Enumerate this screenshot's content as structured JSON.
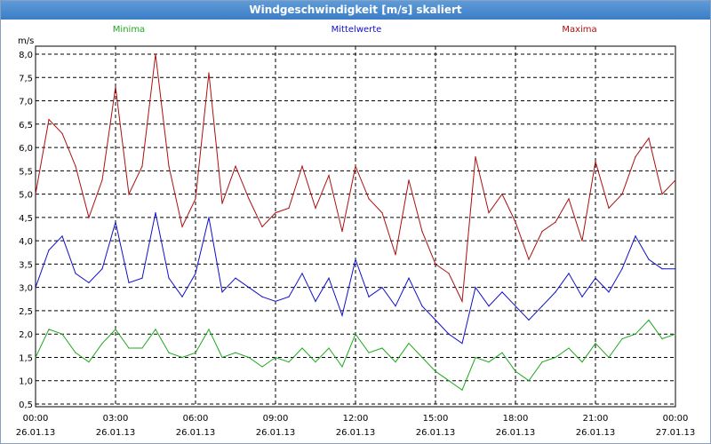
{
  "window": {
    "title": "Windgeschwindigkeit [m/s] skaliert"
  },
  "colors": {
    "minima": "#1fa81f",
    "mittelwerte": "#1010c8",
    "maxima": "#aa1010",
    "grid": "#000000"
  },
  "chart_data": {
    "type": "line",
    "title": "Windgeschwindigkeit [m/s] skaliert",
    "ylabel": "m/s",
    "xlabel": "",
    "ylim": [
      0.5,
      8.0
    ],
    "yticks": [
      "8,0",
      "7,5",
      "7,0",
      "6,5",
      "6,0",
      "5,5",
      "5,0",
      "4,5",
      "4,0",
      "3,5",
      "3,0",
      "2,5",
      "2,0",
      "1,5",
      "1,0",
      "0,5"
    ],
    "xticks": [
      {
        "time": "00:00",
        "date": "26.01.13"
      },
      {
        "time": "03:00",
        "date": "26.01.13"
      },
      {
        "time": "06:00",
        "date": "26.01.13"
      },
      {
        "time": "09:00",
        "date": "26.01.13"
      },
      {
        "time": "12:00",
        "date": "26.01.13"
      },
      {
        "time": "15:00",
        "date": "26.01.13"
      },
      {
        "time": "18:00",
        "date": "26.01.13"
      },
      {
        "time": "21:00",
        "date": "26.01.13"
      },
      {
        "time": "00:00",
        "date": "27.01.13"
      }
    ],
    "grid": true,
    "x_hours": [
      0,
      0.5,
      1,
      1.5,
      2,
      2.5,
      3,
      3.5,
      4,
      4.5,
      5,
      5.5,
      6,
      6.5,
      7,
      7.5,
      8,
      8.5,
      9,
      9.5,
      10,
      10.5,
      11,
      11.5,
      12,
      12.5,
      13,
      13.5,
      14,
      14.5,
      15,
      15.5,
      16,
      16.5,
      17,
      17.5,
      18,
      18.5,
      19,
      19.5,
      20,
      20.5,
      21,
      21.5,
      22,
      22.5,
      23,
      23.5,
      24
    ],
    "series": [
      {
        "name": "Maxima",
        "values": [
          5.0,
          6.6,
          6.3,
          5.6,
          4.5,
          5.3,
          7.3,
          5.0,
          5.6,
          8.0,
          5.6,
          4.3,
          4.9,
          7.6,
          4.8,
          5.6,
          4.9,
          4.3,
          4.6,
          4.7,
          5.6,
          4.7,
          5.4,
          4.2,
          5.6,
          4.9,
          4.6,
          3.7,
          5.3,
          4.2,
          3.5,
          3.3,
          2.7,
          5.8,
          4.6,
          5.0,
          4.4,
          3.6,
          4.2,
          4.4,
          4.9,
          4.0,
          5.7,
          4.7,
          5.0,
          5.8,
          6.2,
          5.0,
          5.3
        ]
      },
      {
        "name": "Mittelwerte",
        "values": [
          3.0,
          3.8,
          4.1,
          3.3,
          3.1,
          3.4,
          4.4,
          3.1,
          3.2,
          4.6,
          3.2,
          2.8,
          3.3,
          4.5,
          2.9,
          3.2,
          3.0,
          2.8,
          2.7,
          2.8,
          3.3,
          2.7,
          3.2,
          2.4,
          3.6,
          2.8,
          3.0,
          2.6,
          3.2,
          2.6,
          2.3,
          2.0,
          1.8,
          3.0,
          2.6,
          2.9,
          2.6,
          2.3,
          2.6,
          2.9,
          3.3,
          2.8,
          3.2,
          2.9,
          3.4,
          4.1,
          3.6,
          3.4,
          3.4
        ]
      },
      {
        "name": "Minima",
        "values": [
          1.5,
          2.1,
          2.0,
          1.6,
          1.4,
          1.8,
          2.1,
          1.7,
          1.7,
          2.1,
          1.6,
          1.5,
          1.6,
          2.1,
          1.5,
          1.6,
          1.5,
          1.3,
          1.5,
          1.4,
          1.7,
          1.4,
          1.7,
          1.3,
          2.0,
          1.6,
          1.7,
          1.4,
          1.8,
          1.5,
          1.2,
          1.0,
          0.8,
          1.5,
          1.4,
          1.6,
          1.2,
          1.0,
          1.4,
          1.5,
          1.7,
          1.4,
          1.8,
          1.5,
          1.9,
          2.0,
          2.3,
          1.9,
          2.0
        ]
      }
    ]
  }
}
